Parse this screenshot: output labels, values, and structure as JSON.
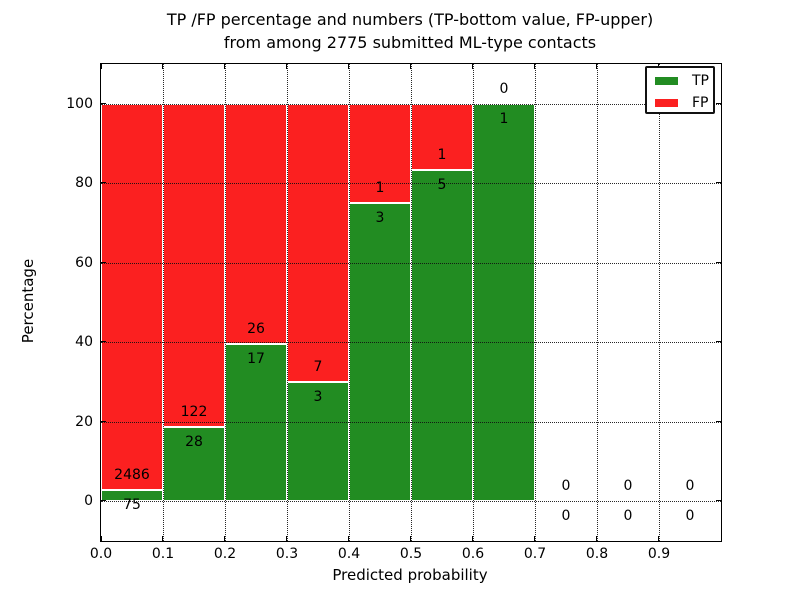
{
  "figure": {
    "title_line1": "TP /FP percentage and numbers (TP-bottom value, FP-upper)",
    "title_line2": "from among 2775 submitted ML-type contacts",
    "xlabel": "Predicted probability",
    "ylabel": "Percentage"
  },
  "legend": {
    "items": [
      {
        "label": "TP",
        "color": "#228c22"
      },
      {
        "label": "FP",
        "color": "#fb2020"
      }
    ]
  },
  "chart_data": {
    "type": "bar",
    "stacked": true,
    "title": "TP /FP percentage and numbers (TP-bottom value, FP-upper) from among 2775 submitted ML-type contacts",
    "xlabel": "Predicted probability",
    "ylabel": "Percentage",
    "total_contacts": 2775,
    "xlim": [
      0.0,
      1.0
    ],
    "ylim": [
      -10,
      110
    ],
    "xticks": [
      "0.0",
      "0.1",
      "0.2",
      "0.3",
      "0.4",
      "0.5",
      "0.6",
      "0.7",
      "0.8",
      "0.9"
    ],
    "xtick_values": [
      0.0,
      0.1,
      0.2,
      0.3,
      0.4,
      0.5,
      0.6,
      0.7,
      0.8,
      0.9
    ],
    "yticks": [
      0,
      20,
      40,
      60,
      80,
      100
    ],
    "grid": "dotted",
    "legend_position": "upper right",
    "colors": {
      "tp": "#228c22",
      "fp": "#fb2020",
      "edge": "#ffffff"
    },
    "bins": [
      {
        "range": [
          0.0,
          0.1
        ],
        "tp_count": 75,
        "fp_count": 2486,
        "tp_pct": 2.93,
        "fp_pct": 97.07
      },
      {
        "range": [
          0.1,
          0.2
        ],
        "tp_count": 28,
        "fp_count": 122,
        "tp_pct": 18.67,
        "fp_pct": 81.33
      },
      {
        "range": [
          0.2,
          0.3
        ],
        "tp_count": 17,
        "fp_count": 26,
        "tp_pct": 39.53,
        "fp_pct": 60.47
      },
      {
        "range": [
          0.3,
          0.4
        ],
        "tp_count": 3,
        "fp_count": 7,
        "tp_pct": 30.0,
        "fp_pct": 70.0
      },
      {
        "range": [
          0.4,
          0.5
        ],
        "tp_count": 3,
        "fp_count": 1,
        "tp_pct": 75.0,
        "fp_pct": 25.0
      },
      {
        "range": [
          0.5,
          0.6
        ],
        "tp_count": 5,
        "fp_count": 1,
        "tp_pct": 83.33,
        "fp_pct": 16.67
      },
      {
        "range": [
          0.6,
          0.7
        ],
        "tp_count": 1,
        "fp_count": 0,
        "tp_pct": 100.0,
        "fp_pct": 0.0
      },
      {
        "range": [
          0.7,
          0.8
        ],
        "tp_count": 0,
        "fp_count": 0,
        "tp_pct": null,
        "fp_pct": null
      },
      {
        "range": [
          0.8,
          0.9
        ],
        "tp_count": 0,
        "fp_count": 0,
        "tp_pct": null,
        "fp_pct": null
      },
      {
        "range": [
          0.9,
          1.0
        ],
        "tp_count": 0,
        "fp_count": 0,
        "tp_pct": null,
        "fp_pct": null
      }
    ]
  }
}
